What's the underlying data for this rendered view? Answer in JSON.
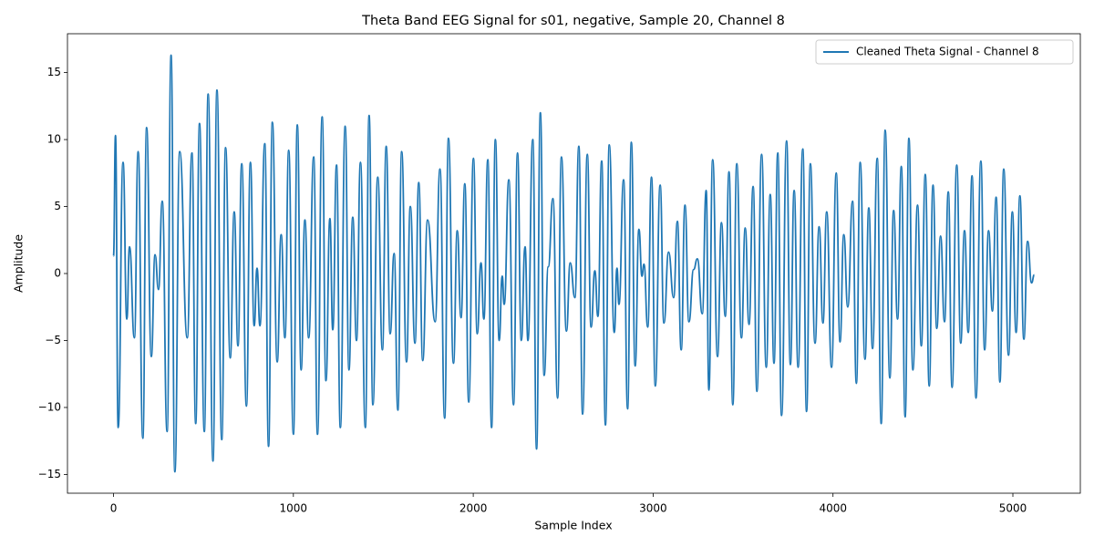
{
  "chart_data": {
    "type": "line",
    "title": "Theta Band EEG Signal for s01, negative, Sample 20, Channel 8",
    "x_label": "Sample Index",
    "y_label": "Amplitude",
    "legend": "upper right",
    "xlim": [
      -256,
      5375
    ],
    "ylim": [
      -16.4,
      17.9
    ],
    "xticks": [
      0,
      1000,
      2000,
      3000,
      4000,
      5000
    ],
    "yticks": [
      {
        "value": -15,
        "label": "−15"
      },
      {
        "value": -10,
        "label": "−10"
      },
      {
        "value": -5,
        "label": "−5"
      },
      0,
      5,
      10,
      15
    ],
    "x": [
      0,
      11,
      26,
      53,
      74,
      89,
      116,
      137,
      163,
      184,
      210,
      231,
      250,
      271,
      298,
      320,
      341,
      368,
      410,
      436,
      457,
      478,
      505,
      526,
      553,
      575,
      602,
      623,
      649,
      671,
      692,
      713,
      739,
      761,
      782,
      798,
      814,
      841,
      862,
      883,
      910,
      932,
      953,
      974,
      1000,
      1022,
      1043,
      1064,
      1085,
      1113,
      1134,
      1160,
      1181,
      1203,
      1219,
      1240,
      1261,
      1288,
      1309,
      1330,
      1351,
      1373,
      1400,
      1421,
      1442,
      1469,
      1495,
      1516,
      1538,
      1560,
      1581,
      1602,
      1629,
      1650,
      1676,
      1697,
      1719,
      1746,
      1788,
      1815,
      1841,
      1862,
      1890,
      1911,
      1932,
      1953,
      1975,
      2001,
      2022,
      2043,
      2059,
      2081,
      2102,
      2123,
      2144,
      2161,
      2172,
      2198,
      2224,
      2246,
      2267,
      2288,
      2304,
      2331,
      2352,
      2373,
      2394,
      2417,
      2443,
      2469,
      2490,
      2518,
      2539,
      2565,
      2587,
      2608,
      2634,
      2655,
      2676,
      2693,
      2714,
      2735,
      2756,
      2784,
      2799,
      2810,
      2836,
      2858,
      2879,
      2900,
      2921,
      2938,
      2949,
      2970,
      2991,
      3012,
      3039,
      3060,
      3086,
      3114,
      3135,
      3156,
      3177,
      3199,
      3225,
      3246,
      3273,
      3295,
      3310,
      3331,
      3358,
      3380,
      3401,
      3422,
      3443,
      3465,
      3491,
      3512,
      3533,
      3556,
      3577,
      3603,
      3629,
      3651,
      3672,
      3693,
      3714,
      3742,
      3763,
      3784,
      3806,
      3832,
      3853,
      3874,
      3900,
      3923,
      3944,
      3965,
      3992,
      4018,
      4039,
      4060,
      4082,
      4109,
      4130,
      4151,
      4178,
      4199,
      4220,
      4246,
      4268,
      4290,
      4316,
      4337,
      4359,
      4380,
      4401,
      4422,
      4444,
      4470,
      4491,
      4513,
      4535,
      4556,
      4577,
      4598,
      4620,
      4641,
      4662,
      4688,
      4710,
      4731,
      4752,
      4773,
      4795,
      4822,
      4843,
      4865,
      4886,
      4907,
      4928,
      4949,
      4976,
      4997,
      5018,
      5039,
      5061,
      5082,
      5104,
      5119
    ],
    "series": [
      {
        "name": "Cleaned Theta Signal - Channel 8",
        "color": "#1f77b4",
        "values": [
          1.3,
          10.3,
          -11.5,
          8.3,
          -3.4,
          2,
          -4.8,
          9.1,
          -12.3,
          10.9,
          -6.2,
          1.4,
          -1.2,
          5.4,
          -11.8,
          16.3,
          -14.8,
          9.1,
          -4.8,
          9,
          -11.2,
          11.2,
          -11.8,
          13.4,
          -14,
          13.7,
          -12.4,
          9.4,
          -6.3,
          4.6,
          -5.4,
          8.2,
          -9.9,
          8.3,
          -3.9,
          0.4,
          -3.9,
          9.7,
          -12.9,
          11.3,
          -6.6,
          2.9,
          -4.8,
          9.2,
          -12,
          11.1,
          -7.2,
          4,
          -4.8,
          8.7,
          -12,
          11.7,
          -8,
          4.1,
          -4.2,
          8.1,
          -11.5,
          11,
          -7.2,
          4.2,
          -5,
          8.3,
          -11.5,
          11.8,
          -9.8,
          7.2,
          -5.7,
          9.5,
          -4.5,
          1.5,
          -10.2,
          9.1,
          -6.6,
          5,
          -5.2,
          6.8,
          -6.5,
          4,
          -3.6,
          7.8,
          -10.8,
          10.1,
          -6.7,
          3.2,
          -3.3,
          6.7,
          -9.6,
          8.6,
          -4.5,
          0.8,
          -3.4,
          8.5,
          -11.5,
          10,
          -5,
          -0.2,
          -2.3,
          7,
          -9.8,
          9,
          -5,
          2,
          -5,
          10,
          -13.1,
          12,
          -7.6,
          0.5,
          5.6,
          -9.3,
          8.7,
          -4.3,
          0.8,
          -1.8,
          9.5,
          -10.5,
          8.9,
          -4,
          0.2,
          -3.2,
          8.4,
          -11.3,
          9.6,
          -4.4,
          0.4,
          -2.3,
          7,
          -10.1,
          9.8,
          -6.9,
          3.3,
          -0.2,
          0.7,
          -4,
          7.2,
          -8.4,
          6.6,
          -3.7,
          1.6,
          -1.8,
          3.9,
          -5.7,
          5.1,
          -3.6,
          0.3,
          1.1,
          -3,
          6.2,
          -8.7,
          8.5,
          -6.2,
          3.8,
          -3.2,
          7.6,
          -9.8,
          8.2,
          -4.8,
          3.4,
          -3.8,
          6.5,
          -8.8,
          8.9,
          -7,
          5.9,
          -6.7,
          9,
          -10.6,
          9.9,
          -6.8,
          6.2,
          -7,
          9.3,
          -10.3,
          8.2,
          -5.2,
          3.5,
          -3.7,
          4.6,
          -7,
          7.5,
          -5.1,
          2.9,
          -2.5,
          5.4,
          -8.2,
          8.3,
          -6.4,
          4.9,
          -5.6,
          8.6,
          -11.2,
          10.7,
          -7.8,
          4.7,
          -3.4,
          8,
          -10.7,
          10.1,
          -7.2,
          5.1,
          -5.4,
          7.4,
          -8.4,
          6.6,
          -4.1,
          2.8,
          -3.6,
          6.1,
          -8.5,
          8.1,
          -5.2,
          3.2,
          -4.4,
          7.3,
          -9.3,
          8.4,
          -5.7,
          3.2,
          -2.8,
          5.7,
          -8.1,
          7.8,
          -6.1,
          4.6,
          -4.4,
          5.8,
          -4.9,
          2.4,
          -0.7,
          -0.1
        ]
      }
    ]
  }
}
